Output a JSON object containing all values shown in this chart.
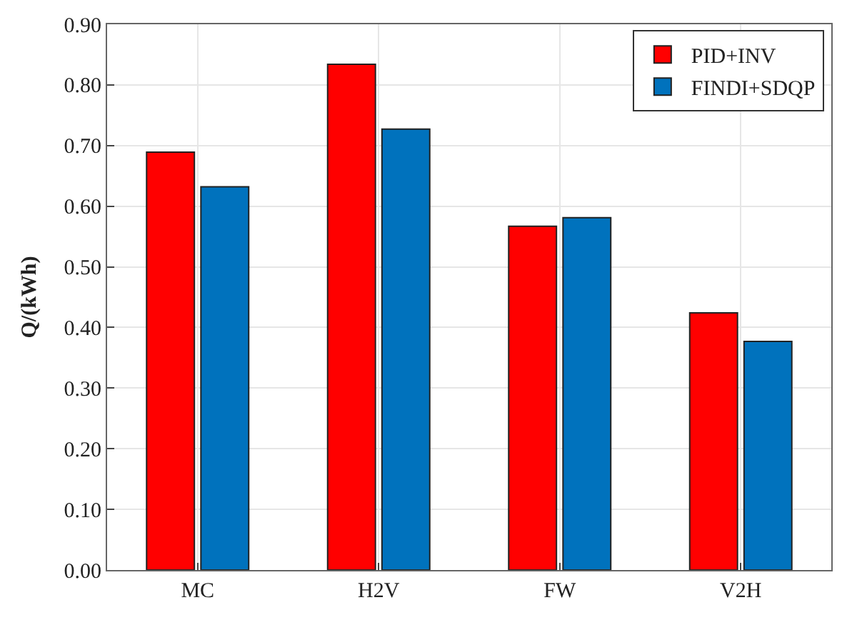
{
  "chart_data": {
    "type": "bar",
    "ylabel": "Q/(kWh)",
    "categories": [
      "MC",
      "H2V",
      "FW",
      "V2H"
    ],
    "series": [
      {
        "name": "PID+INV",
        "color": "#ff0000",
        "values": [
          0.689,
          0.834,
          0.567,
          0.424
        ]
      },
      {
        "name": "FINDI+SDQP",
        "color": "#0072bd",
        "values": [
          0.632,
          0.727,
          0.581,
          0.377
        ]
      }
    ],
    "ylim": [
      0,
      0.9
    ],
    "yticks": [
      {
        "value": 0,
        "label": "0.00"
      },
      {
        "value": 0.1,
        "label": "0.10"
      },
      {
        "value": 0.2,
        "label": "0.20"
      },
      {
        "value": 0.3,
        "label": "0.30"
      },
      {
        "value": 0.4,
        "label": "0.40"
      },
      {
        "value": 0.5,
        "label": "0.50"
      },
      {
        "value": 0.6,
        "label": "0.60"
      },
      {
        "value": 0.7,
        "label": "0.70"
      },
      {
        "value": 0.8,
        "label": "0.80"
      },
      {
        "value": 0.9,
        "label": "0.90"
      }
    ],
    "grid": true,
    "legend": "top right"
  }
}
